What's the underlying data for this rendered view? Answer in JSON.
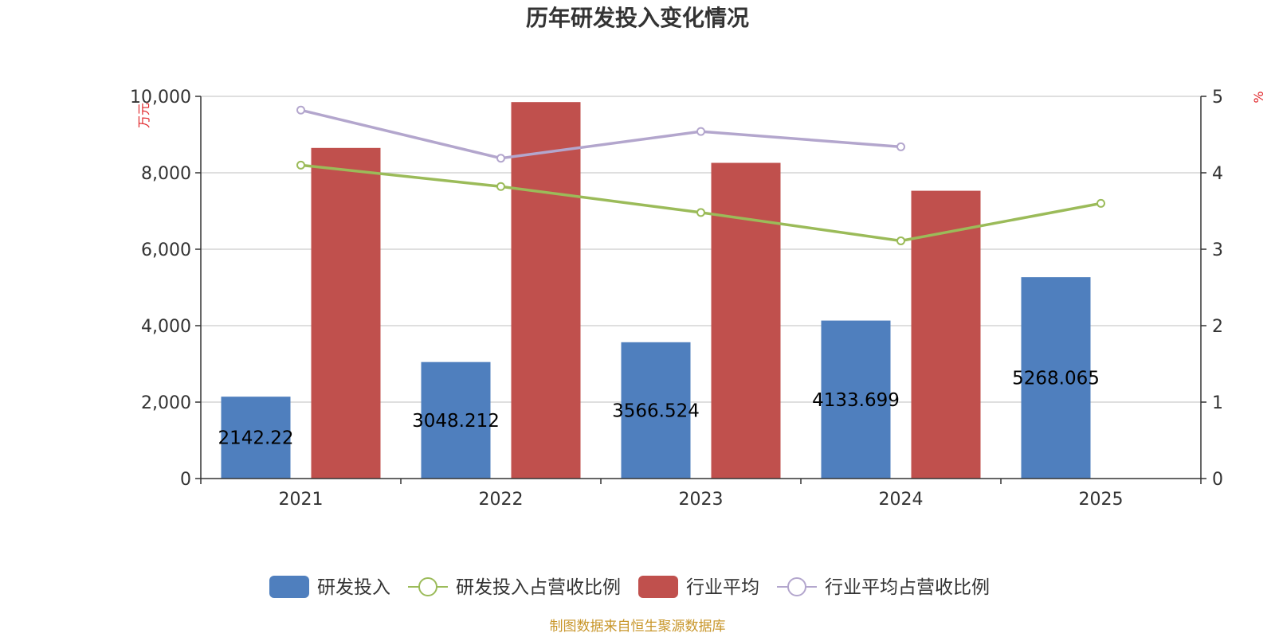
{
  "chart_data": {
    "type": "bar",
    "title": "历年研发投入变化情况",
    "categories": [
      "2021",
      "2022",
      "2023",
      "2024",
      "2025"
    ],
    "y_left": {
      "unit": "万元",
      "range": [
        0,
        10000
      ],
      "ticks": [
        "0",
        "2,000",
        "4,000",
        "6,000",
        "8,000",
        "10,000"
      ]
    },
    "y_right": {
      "unit": "%",
      "range": [
        0,
        5
      ],
      "ticks": [
        "0",
        "1",
        "2",
        "3",
        "4",
        "5"
      ]
    },
    "series": [
      {
        "name": "研发投入",
        "type": "bar",
        "axis": "left",
        "color": "#4f7fbe",
        "values": [
          2142.22,
          3048.212,
          3566.524,
          4133.699,
          5268.065
        ],
        "labels": [
          "2142.22",
          "3048.212",
          "3566.524",
          "4133.699",
          "5268.065"
        ]
      },
      {
        "name": "研发投入占营收比例",
        "type": "line",
        "axis": "right",
        "color": "#9bbb59",
        "values": [
          4.1,
          3.82,
          3.48,
          3.11,
          3.6
        ]
      },
      {
        "name": "行业平均",
        "type": "bar",
        "axis": "left",
        "color": "#c0504d",
        "values": [
          8650,
          9850,
          8260,
          7530,
          null
        ]
      },
      {
        "name": "行业平均占营收比例",
        "type": "line",
        "axis": "right",
        "color": "#b3a6cd",
        "values": [
          4.82,
          4.19,
          4.54,
          4.34,
          null
        ]
      }
    ],
    "grid": true,
    "legend_position": "bottom"
  },
  "source_note": "制图数据来自恒生聚源数据库"
}
